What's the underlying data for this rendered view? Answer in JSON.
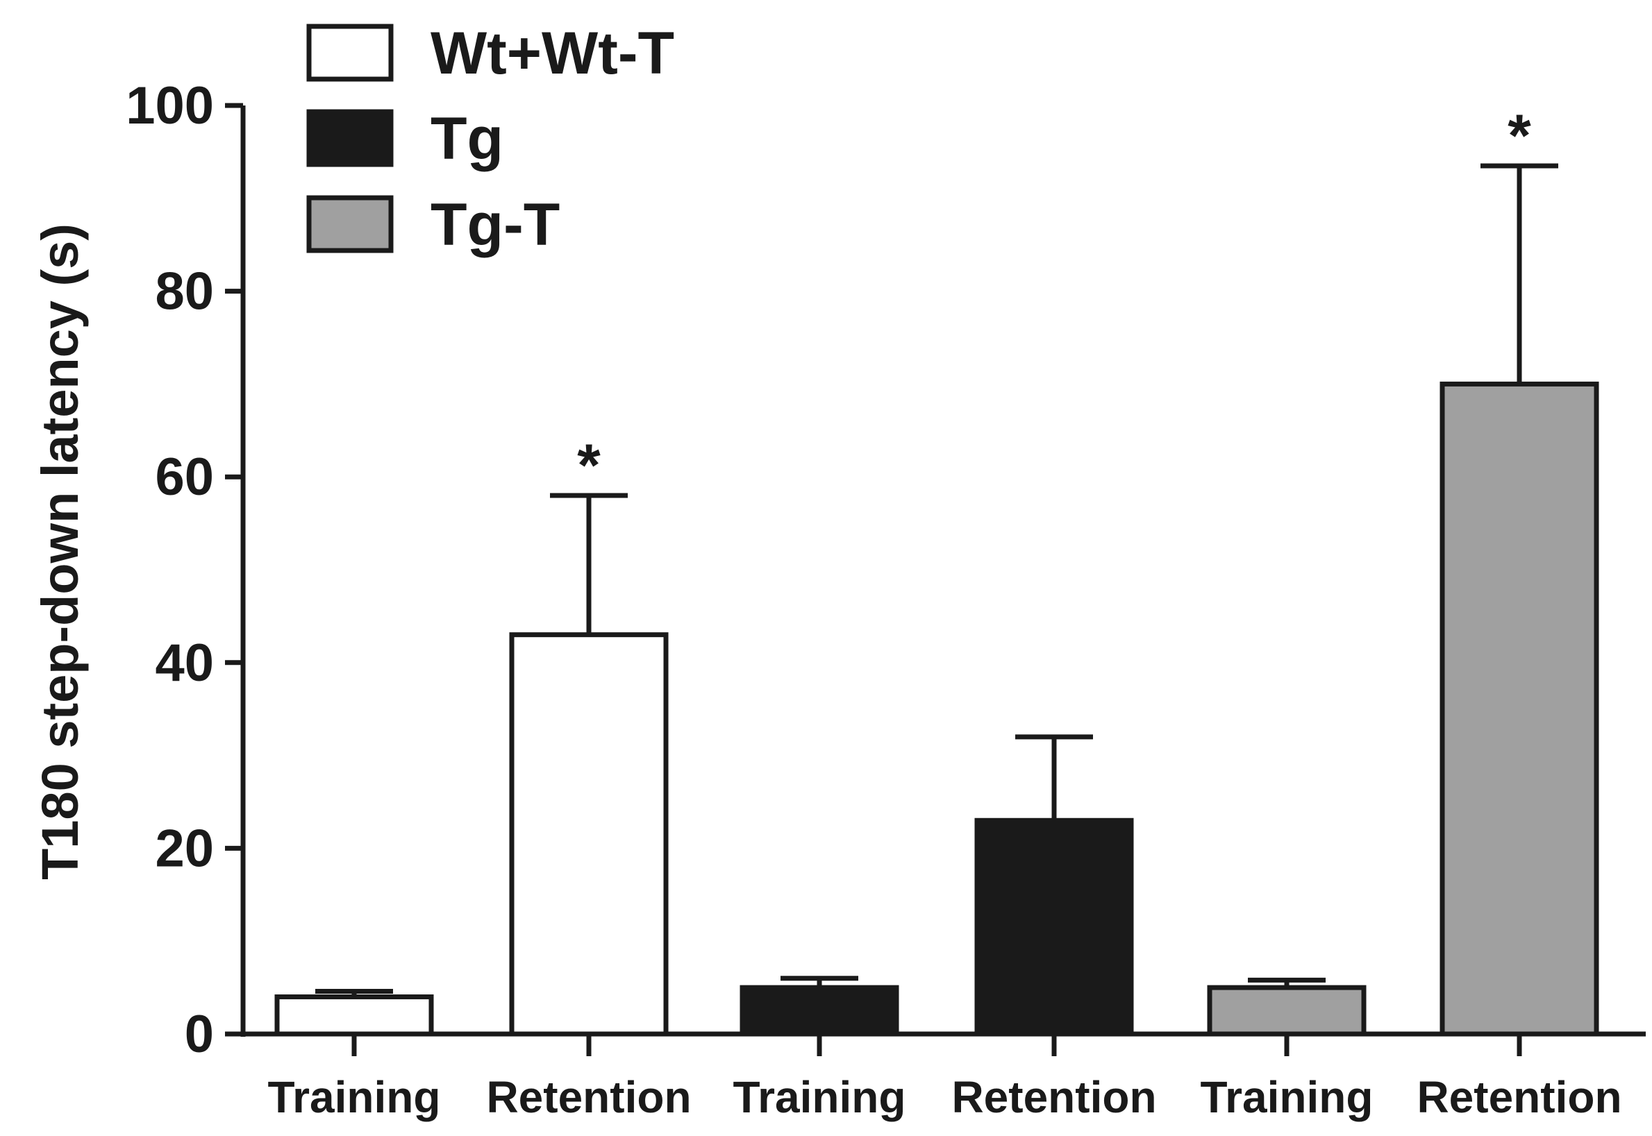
{
  "chart_data": {
    "type": "bar",
    "title": "",
    "xlabel": "",
    "ylabel": "T180 step-down latency (s)",
    "ylim": [
      0,
      100
    ],
    "yticks": [
      "0",
      "20",
      "40",
      "60",
      "80",
      "100"
    ],
    "categories": [
      "Training",
      "Retention",
      "Training",
      "Retention",
      "Training",
      "Retention"
    ],
    "legend": {
      "position": "top-left",
      "entries": [
        {
          "name": "Wt+Wt-T",
          "color": "#ffffff"
        },
        {
          "name": "Tg",
          "color": "#1a1a1a"
        },
        {
          "name": "Tg-T",
          "color": "#a0a0a0"
        }
      ]
    },
    "bars": [
      {
        "category": "Training",
        "group": "Wt+Wt-T",
        "value": 4,
        "error": 0.6,
        "color": "#ffffff",
        "annotation": ""
      },
      {
        "category": "Retention",
        "group": "Wt+Wt-T",
        "value": 43,
        "error": 15,
        "color": "#ffffff",
        "annotation": "*"
      },
      {
        "category": "Training",
        "group": "Tg",
        "value": 5,
        "error": 1,
        "color": "#1a1a1a",
        "annotation": ""
      },
      {
        "category": "Retention",
        "group": "Tg",
        "value": 23,
        "error": 9,
        "color": "#1a1a1a",
        "annotation": ""
      },
      {
        "category": "Training",
        "group": "Tg-T",
        "value": 5,
        "error": 0.8,
        "color": "#a0a0a0",
        "annotation": ""
      },
      {
        "category": "Retention",
        "group": "Tg-T",
        "value": 70,
        "error": 23.5,
        "color": "#a0a0a0",
        "annotation": "*"
      }
    ],
    "grid": false
  }
}
